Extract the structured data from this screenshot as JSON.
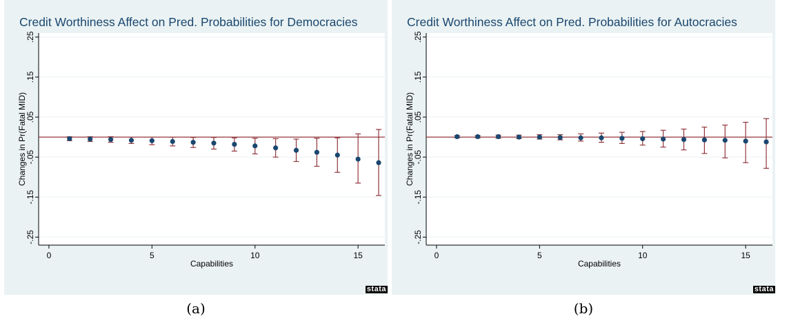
{
  "charts": [
    {
      "title": "Credit Worthiness Affect on Pred. Probabilities for Democracies",
      "caption": "(a)",
      "logo": "stata",
      "chart_data": {
        "type": "scatter",
        "xlabel": "Capabilities",
        "ylabel": "Changes in Pr(Fatal MID)",
        "xlim": [
          -0.5,
          16.3
        ],
        "ylim": [
          -0.27,
          0.26
        ],
        "xticks": [
          0,
          5,
          10,
          15
        ],
        "xtick_labels": [
          "0",
          "5",
          "10",
          "15"
        ],
        "yticks": [
          -0.25,
          -0.15,
          -0.05,
          0.05,
          0.15,
          0.25
        ],
        "ytick_labels": [
          "-.25",
          "-.15",
          "-.05",
          ".05",
          ".15",
          ".25"
        ],
        "reference_line_y": 0,
        "grid": true,
        "x": [
          1,
          2,
          3,
          4,
          5,
          6,
          7,
          8,
          9,
          10,
          11,
          12,
          13,
          14,
          15,
          16
        ],
        "y": [
          -0.004,
          -0.005,
          -0.006,
          -0.008,
          -0.009,
          -0.011,
          -0.013,
          -0.015,
          -0.018,
          -0.022,
          -0.027,
          -0.033,
          -0.038,
          -0.045,
          -0.055,
          -0.064
        ],
        "ci_low": [
          -0.009,
          -0.011,
          -0.013,
          -0.016,
          -0.019,
          -0.022,
          -0.026,
          -0.03,
          -0.035,
          -0.042,
          -0.05,
          -0.061,
          -0.073,
          -0.088,
          -0.115,
          -0.146
        ],
        "ci_high": [
          0.001,
          0.001,
          0.001,
          0.0,
          0.0,
          0.0,
          -0.001,
          -0.001,
          -0.002,
          -0.003,
          -0.004,
          -0.005,
          -0.003,
          -0.002,
          0.008,
          0.019
        ]
      }
    },
    {
      "title": "Credit Worthiness Affect on Pred. Probabilities for Autocracies",
      "caption": "(b)",
      "logo": "stata",
      "chart_data": {
        "type": "scatter",
        "xlabel": "Capabilities",
        "ylabel": "Changes in Pr(Fatal MID)",
        "xlim": [
          -0.5,
          16.3
        ],
        "ylim": [
          -0.27,
          0.26
        ],
        "xticks": [
          0,
          5,
          10,
          15
        ],
        "xtick_labels": [
          "0",
          "5",
          "10",
          "15"
        ],
        "yticks": [
          -0.25,
          -0.15,
          -0.05,
          0.05,
          0.15,
          0.25
        ],
        "ytick_labels": [
          "-.25",
          "-.15",
          "-.05",
          ".05",
          ".15",
          ".25"
        ],
        "reference_line_y": 0,
        "grid": true,
        "x": [
          1,
          2,
          3,
          4,
          5,
          6,
          7,
          8,
          9,
          10,
          11,
          12,
          13,
          14,
          15,
          16
        ],
        "y": [
          0.001,
          0.001,
          0.001,
          0.0,
          0.0,
          -0.001,
          -0.002,
          -0.002,
          -0.003,
          -0.004,
          -0.005,
          -0.006,
          -0.007,
          -0.008,
          -0.01,
          -0.012
        ],
        "ci_low": [
          -0.002,
          -0.002,
          -0.003,
          -0.004,
          -0.005,
          -0.007,
          -0.01,
          -0.013,
          -0.016,
          -0.02,
          -0.025,
          -0.032,
          -0.041,
          -0.052,
          -0.064,
          -0.078
        ],
        "ci_high": [
          0.004,
          0.004,
          0.005,
          0.005,
          0.006,
          0.006,
          0.008,
          0.01,
          0.012,
          0.014,
          0.017,
          0.02,
          0.025,
          0.03,
          0.037,
          0.046
        ]
      }
    }
  ]
}
